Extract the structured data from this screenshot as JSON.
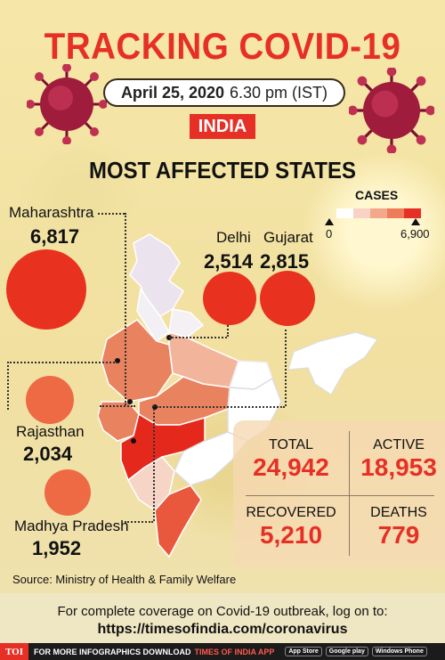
{
  "header": {
    "title": "TRACKING COVID-19",
    "date": "April 25, 2020",
    "time": "6.30 pm (IST)",
    "country": "INDIA",
    "subtitle": "MOST AFFECTED STATES"
  },
  "legend": {
    "title": "CASES",
    "min": "0",
    "max": "6,900",
    "colors": [
      "#ffffff",
      "#f8d2c4",
      "#f3a88a",
      "#ee7b5a",
      "#e63026"
    ]
  },
  "states": [
    {
      "name": "Maharashtra",
      "cases": "6,817"
    },
    {
      "name": "Delhi",
      "cases": "2,514"
    },
    {
      "name": "Gujarat",
      "cases": "2,815"
    },
    {
      "name": "Rajasthan",
      "cases": "2,034"
    },
    {
      "name": "Madhya Pradesh",
      "cases": "1,952"
    }
  ],
  "stats": {
    "total_label": "TOTAL",
    "total": "24,942",
    "active_label": "ACTIVE",
    "active": "18,953",
    "recovered_label": "RECOVERED",
    "recovered": "5,210",
    "deaths_label": "DEATHS",
    "deaths": "779"
  },
  "source": "Source: Ministry of Health & Family Welfare",
  "footer": {
    "coverage": "For complete coverage on Covid-19 outbreak, log on to:",
    "url": "https://timesofindia.com/coronavirus",
    "brand": "TOI",
    "strip_text": "FOR MORE INFOGRAPHICS DOWNLOAD",
    "app_name": "TIMES OF INDIA APP",
    "stores": [
      "App Store",
      "Google play",
      "Windows Phone"
    ]
  },
  "colors": {
    "accent": "#e63026",
    "dark": "#111111"
  }
}
